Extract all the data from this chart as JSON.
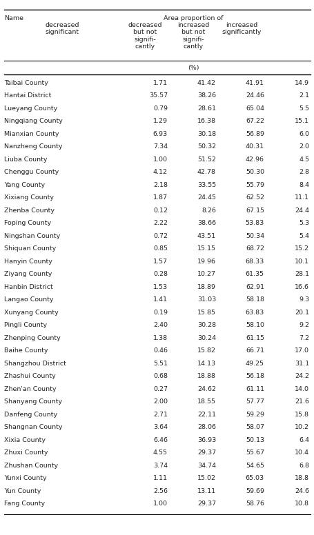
{
  "rows": [
    [
      "Taibai County",
      "1.71",
      "41.42",
      "41.91",
      "14.9"
    ],
    [
      "Hantai District",
      "35.57",
      "38.26",
      "24.46",
      "2.1"
    ],
    [
      "Lueyang County",
      "0.79",
      "28.61",
      "65.04",
      "5.5"
    ],
    [
      "Ningqiang County",
      "1.29",
      "16.38",
      "67.22",
      "15.1"
    ],
    [
      "Mianxian County",
      "6.93",
      "30.18",
      "56.89",
      "6.0"
    ],
    [
      "Nanzheng County",
      "7.34",
      "50.32",
      "40.31",
      "2.0"
    ],
    [
      "Liuba County",
      "1.00",
      "51.52",
      "42.96",
      "4.5"
    ],
    [
      "Chenggu County",
      "4.12",
      "42.78",
      "50.30",
      "2.8"
    ],
    [
      "Yang County",
      "2.18",
      "33.55",
      "55.79",
      "8.4"
    ],
    [
      "Xixiang County",
      "1.87",
      "24.45",
      "62.52",
      "11.1"
    ],
    [
      "Zhenba County",
      "0.12",
      "8.26",
      "67.15",
      "24.4"
    ],
    [
      "Foping County",
      "2.22",
      "38.66",
      "53.83",
      "5.3"
    ],
    [
      "Ningshan County",
      "0.72",
      "43.51",
      "50.34",
      "5.4"
    ],
    [
      "Shiquan County",
      "0.85",
      "15.15",
      "68.72",
      "15.2"
    ],
    [
      "Hanyin County",
      "1.57",
      "19.96",
      "68.33",
      "10.1"
    ],
    [
      "Ziyang County",
      "0.28",
      "10.27",
      "61.35",
      "28.1"
    ],
    [
      "Hanbin District",
      "1.53",
      "18.89",
      "62.91",
      "16.6"
    ],
    [
      "Langao County",
      "1.41",
      "31.03",
      "58.18",
      "9.3"
    ],
    [
      "Xunyang County",
      "0.19",
      "15.85",
      "63.83",
      "20.1"
    ],
    [
      "Pingli County",
      "2.40",
      "30.28",
      "58.10",
      "9.2"
    ],
    [
      "Zhenping County",
      "1.38",
      "30.24",
      "61.15",
      "7.2"
    ],
    [
      "Baihe County",
      "0.46",
      "15.82",
      "66.71",
      "17.0"
    ],
    [
      "Shangzhou District",
      "5.51",
      "14.13",
      "49.25",
      "31.1"
    ],
    [
      "Zhashui County",
      "0.68",
      "18.88",
      "56.18",
      "24.2"
    ],
    [
      "Zhen'an County",
      "0.27",
      "24.62",
      "61.11",
      "14.0"
    ],
    [
      "Shanyang County",
      "2.00",
      "18.55",
      "57.77",
      "21.6"
    ],
    [
      "Danfeng County",
      "2.71",
      "22.11",
      "59.29",
      "15.8"
    ],
    [
      "Shangnan County",
      "3.64",
      "28.06",
      "58.07",
      "10.2"
    ],
    [
      "Xixia County",
      "6.46",
      "36.93",
      "50.13",
      "6.4"
    ],
    [
      "Zhuxi County",
      "4.55",
      "29.37",
      "55.67",
      "10.4"
    ],
    [
      "Zhushan County",
      "3.74",
      "34.74",
      "54.65",
      "6.8"
    ],
    [
      "Yunxi County",
      "1.11",
      "15.02",
      "65.03",
      "18.8"
    ],
    [
      "Yun County",
      "2.56",
      "13.11",
      "59.69",
      "24.6"
    ],
    [
      "Fang County",
      "1.00",
      "29.37",
      "58.76",
      "10.8"
    ]
  ],
  "sub_headers": [
    "decreased\nsignificant",
    "decreased\nbut not\nsignifi-\ncantly",
    "increased\nbut not\nsignifi-\ncantly",
    "increased\nsignificantly"
  ],
  "area_proportion_label": "Area proportion of",
  "name_label": "Name",
  "unit_label": "(%)",
  "bg_color": "#ffffff",
  "text_color": "#222222",
  "font_size": 6.8,
  "header_font_size": 6.8
}
